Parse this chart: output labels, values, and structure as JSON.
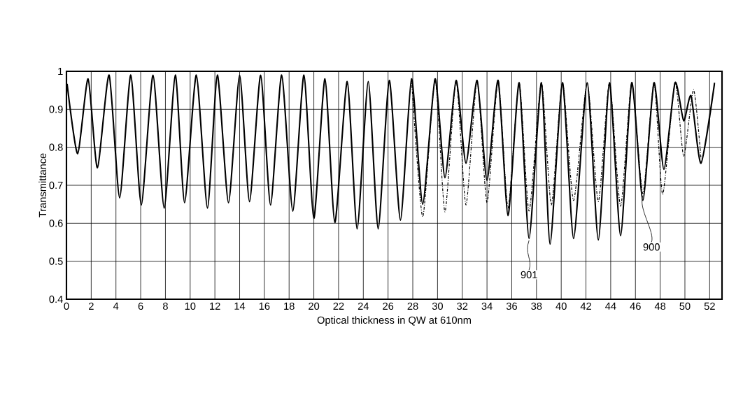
{
  "chart_data": {
    "type": "line",
    "xlabel": "Optical thickness in QW at 610nm",
    "ylabel": "Transmittance",
    "xlim": [
      0,
      53
    ],
    "xticks": [
      0,
      2,
      4,
      6,
      8,
      10,
      12,
      14,
      16,
      18,
      20,
      22,
      24,
      26,
      28,
      30,
      32,
      34,
      36,
      38,
      40,
      42,
      44,
      46,
      48,
      50,
      52
    ],
    "ylim": [
      0.4,
      1
    ],
    "yticks": [
      0.4,
      0.5,
      0.6,
      0.7,
      0.8,
      0.9,
      1
    ],
    "grid": true,
    "series": [
      {
        "color": "#000000",
        "line_style": "solid",
        "x": [
          0.05,
          0.9,
          1.75,
          2.5,
          3.45,
          4.3,
          5.2,
          6.05,
          7.0,
          7.9,
          8.8,
          9.55,
          10.5,
          11.4,
          12.2,
          13.1,
          14.0,
          14.8,
          15.7,
          16.5,
          17.4,
          18.3,
          19.2,
          20.0,
          20.9,
          21.7,
          22.7,
          23.5,
          24.4,
          25.2,
          26.1,
          27.0,
          27.9,
          28.8,
          29.8,
          30.6,
          31.5,
          32.3,
          33.2,
          34.0,
          34.9,
          35.7,
          36.6,
          37.4,
          38.4,
          39.1,
          40.1,
          41.0,
          42.1,
          43.0,
          43.9,
          44.8,
          45.7,
          46.6,
          47.5,
          48.3,
          49.2,
          49.9,
          50.5,
          51.3,
          52.4
        ],
        "values": [
          0.967,
          0.783,
          0.98,
          0.746,
          0.99,
          0.667,
          0.99,
          0.648,
          0.99,
          0.64,
          0.99,
          0.654,
          0.99,
          0.64,
          0.99,
          0.654,
          0.99,
          0.657,
          0.99,
          0.648,
          0.99,
          0.632,
          0.99,
          0.613,
          0.98,
          0.602,
          0.973,
          0.585,
          0.973,
          0.585,
          0.976,
          0.608,
          0.98,
          0.65,
          0.98,
          0.72,
          0.976,
          0.758,
          0.976,
          0.713,
          0.976,
          0.62,
          0.97,
          0.56,
          0.97,
          0.545,
          0.97,
          0.56,
          0.97,
          0.556,
          0.97,
          0.567,
          0.97,
          0.66,
          0.97,
          0.742,
          0.97,
          0.87,
          0.935,
          0.758,
          0.97
        ]
      },
      {
        "color": "#000000",
        "line_style": "dashed",
        "x": [
          27.9,
          28.8,
          29.8,
          30.6,
          31.5,
          32.3,
          33.2,
          34.0,
          34.9,
          35.7,
          36.6,
          37.4,
          38.4,
          39.2,
          40.1,
          41.0,
          42.1,
          43.0,
          43.9,
          44.8,
          45.7,
          46.6,
          47.5,
          48.2,
          49.2,
          49.9,
          50.7,
          51.3
        ],
        "values": [
          0.98,
          0.617,
          0.98,
          0.63,
          0.976,
          0.648,
          0.976,
          0.654,
          0.976,
          0.64,
          0.97,
          0.632,
          0.97,
          0.648,
          0.97,
          0.66,
          0.97,
          0.657,
          0.97,
          0.645,
          0.97,
          0.678,
          0.97,
          0.676,
          0.97,
          0.777,
          0.952,
          0.77
        ]
      }
    ],
    "annotations": [
      {
        "text": "901",
        "x": 37.4,
        "y": 0.56
      },
      {
        "text": "900",
        "x": 46.6,
        "y": 0.678
      }
    ]
  }
}
